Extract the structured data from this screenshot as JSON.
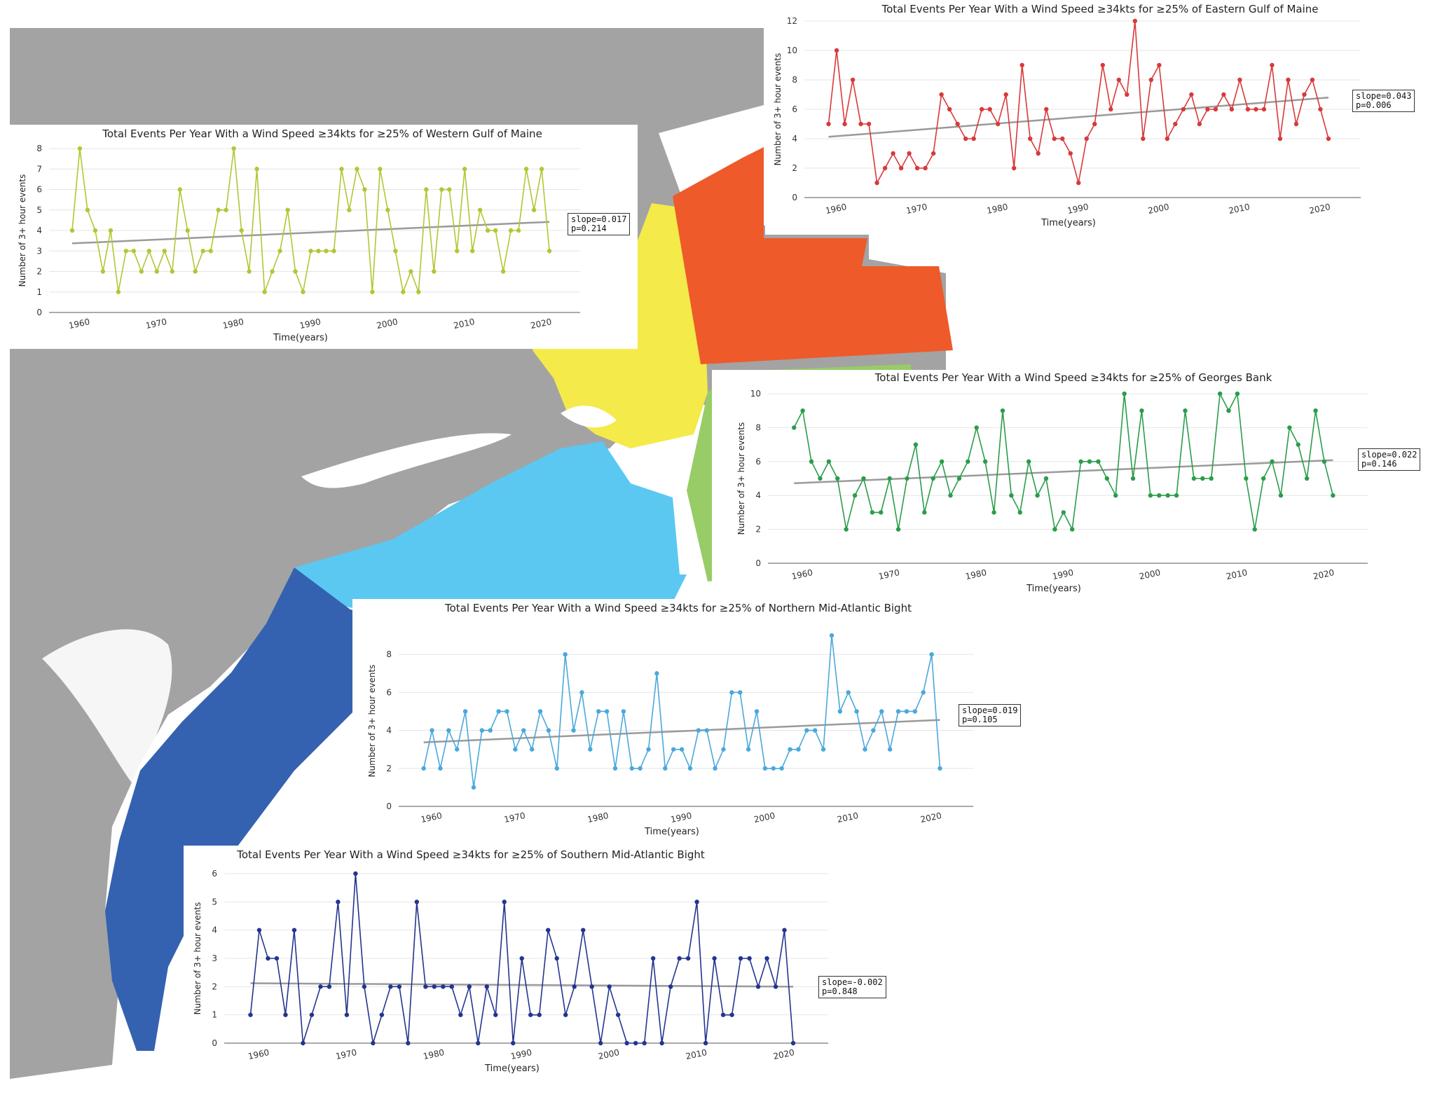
{
  "chart_data": [
    {
      "type": "line",
      "region": "western",
      "title": "Total Events Per Year With a Wind Speed ≥34kts for ≥25% of Western Gulf of Maine",
      "xlabel": "Time(years)",
      "ylabel": "Number of 3+ hour events",
      "xlim": [
        1956,
        2025
      ],
      "ylim": [
        0,
        8
      ],
      "yticks": [
        0,
        1,
        2,
        3,
        4,
        5,
        6,
        7,
        8
      ],
      "xticks": [
        1960,
        1970,
        1980,
        1990,
        2000,
        2010,
        2020
      ],
      "color": "#b5c534",
      "years_start": 1959,
      "values": [
        4,
        8,
        5,
        4,
        2,
        4,
        1,
        3,
        3,
        2,
        3,
        2,
        3,
        2,
        6,
        4,
        2,
        3,
        3,
        5,
        5,
        8,
        4,
        2,
        7,
        1,
        2,
        3,
        5,
        2,
        1,
        3,
        3,
        3,
        3,
        7,
        5,
        7,
        6,
        1,
        7,
        5,
        3,
        1,
        2,
        1,
        6,
        2,
        6,
        6,
        3,
        7,
        3,
        5,
        4,
        4,
        2,
        4,
        4,
        7,
        5,
        7,
        3
      ],
      "trend": {
        "start": 3.37,
        "end": 4.42
      },
      "stats": [
        "slope=0.017",
        "p=0.214"
      ]
    },
    {
      "type": "line",
      "region": "eastern",
      "title": "Total Events Per Year With a Wind Speed ≥34kts for ≥25% of Eastern Gulf of Maine",
      "xlabel": "Time(years)",
      "ylabel": "Number of 3+ hour events",
      "xlim": [
        1956,
        2025
      ],
      "ylim": [
        0,
        12
      ],
      "yticks": [
        0,
        2,
        4,
        6,
        8,
        10,
        12
      ],
      "xticks": [
        1960,
        1970,
        1980,
        1990,
        2000,
        2010,
        2020
      ],
      "color": "#d8393b",
      "years_start": 1959,
      "values": [
        5,
        10,
        5,
        8,
        5,
        5,
        1,
        2,
        3,
        2,
        3,
        2,
        2,
        3,
        7,
        6,
        5,
        4,
        4,
        6,
        6,
        5,
        7,
        2,
        9,
        4,
        3,
        6,
        4,
        4,
        3,
        1,
        4,
        5,
        9,
        6,
        8,
        7,
        12,
        4,
        8,
        9,
        4,
        5,
        6,
        7,
        5,
        6,
        6,
        7,
        6,
        8,
        6,
        6,
        6,
        9,
        4,
        8,
        5,
        7,
        8,
        6,
        4
      ],
      "trend": {
        "start": 4.13,
        "end": 6.8
      },
      "stats": [
        "slope=0.043",
        "p=0.006"
      ]
    },
    {
      "type": "line",
      "region": "georges",
      "title": "Total Events Per Year With a Wind Speed ≥34kts for ≥25% of Georges Bank",
      "xlabel": "Time(years)",
      "ylabel": "Number of 3+ hour events",
      "xlim": [
        1956,
        2025
      ],
      "ylim": [
        0,
        10
      ],
      "yticks": [
        0,
        2,
        4,
        6,
        8,
        10
      ],
      "xticks": [
        1960,
        1970,
        1980,
        1990,
        2000,
        2010,
        2020
      ],
      "color": "#2a9d4a",
      "years_start": 1959,
      "values": [
        8,
        9,
        6,
        5,
        6,
        5,
        2,
        4,
        5,
        3,
        3,
        5,
        2,
        5,
        7,
        3,
        5,
        6,
        4,
        5,
        6,
        8,
        6,
        3,
        9,
        4,
        3,
        6,
        4,
        5,
        2,
        3,
        2,
        6,
        6,
        6,
        5,
        4,
        10,
        5,
        9,
        4,
        4,
        4,
        4,
        9,
        5,
        5,
        5,
        10,
        9,
        10,
        5,
        2,
        5,
        6,
        4,
        8,
        7,
        5,
        9,
        6,
        4
      ],
      "trend": {
        "start": 4.72,
        "end": 6.08
      },
      "stats": [
        "slope=0.022",
        "p=0.146"
      ]
    },
    {
      "type": "line",
      "region": "northern",
      "title": "Total Events Per Year With a Wind Speed ≥34kts for ≥25% of Northern Mid-Atlantic Bight",
      "xlabel": "Time(years)",
      "ylabel": "Number of 3+ hour events",
      "xlim": [
        1956,
        2025
      ],
      "ylim": [
        0,
        9
      ],
      "yticks": [
        0,
        2,
        4,
        6,
        8
      ],
      "xticks": [
        1960,
        1970,
        1980,
        1990,
        2000,
        2010,
        2020
      ],
      "color": "#4aa8dc",
      "years_start": 1959,
      "values": [
        2,
        4,
        2,
        4,
        3,
        5,
        1,
        4,
        4,
        5,
        5,
        3,
        4,
        3,
        5,
        4,
        2,
        8,
        4,
        6,
        3,
        5,
        5,
        2,
        5,
        2,
        2,
        3,
        7,
        2,
        3,
        3,
        2,
        4,
        4,
        2,
        3,
        6,
        6,
        3,
        5,
        2,
        2,
        2,
        3,
        3,
        4,
        4,
        3,
        9,
        5,
        6,
        5,
        3,
        4,
        5,
        3,
        5,
        5,
        5,
        6,
        8,
        2
      ],
      "trend": {
        "start": 3.37,
        "end": 4.55
      },
      "stats": [
        "slope=0.019",
        "p=0.105"
      ]
    },
    {
      "type": "line",
      "region": "southern",
      "title": "Total Events Per Year With a Wind Speed ≥34kts for ≥25% of Southern Mid-Atlantic Bight",
      "xlabel": "Time(years)",
      "ylabel": "Number of 3+ hour events",
      "xlim": [
        1956,
        2025
      ],
      "ylim": [
        0,
        6
      ],
      "yticks": [
        0,
        1,
        2,
        3,
        4,
        5,
        6
      ],
      "xticks": [
        1960,
        1970,
        1980,
        1990,
        2000,
        2010,
        2020
      ],
      "color": "#23358f",
      "years_start": 1959,
      "values": [
        1,
        4,
        3,
        3,
        1,
        4,
        0,
        1,
        2,
        2,
        5,
        1,
        6,
        2,
        0,
        1,
        2,
        2,
        0,
        5,
        2,
        2,
        2,
        2,
        1,
        2,
        0,
        2,
        1,
        5,
        0,
        3,
        1,
        1,
        4,
        3,
        1,
        2,
        4,
        2,
        0,
        2,
        1,
        0,
        0,
        0,
        3,
        0,
        2,
        3,
        3,
        5,
        0,
        3,
        1,
        1,
        3,
        3,
        2,
        3,
        2,
        4,
        0
      ],
      "trend": {
        "start": 2.12,
        "end": 2.0
      },
      "stats": [
        "slope=-0.002",
        "p=0.848"
      ]
    }
  ]
}
